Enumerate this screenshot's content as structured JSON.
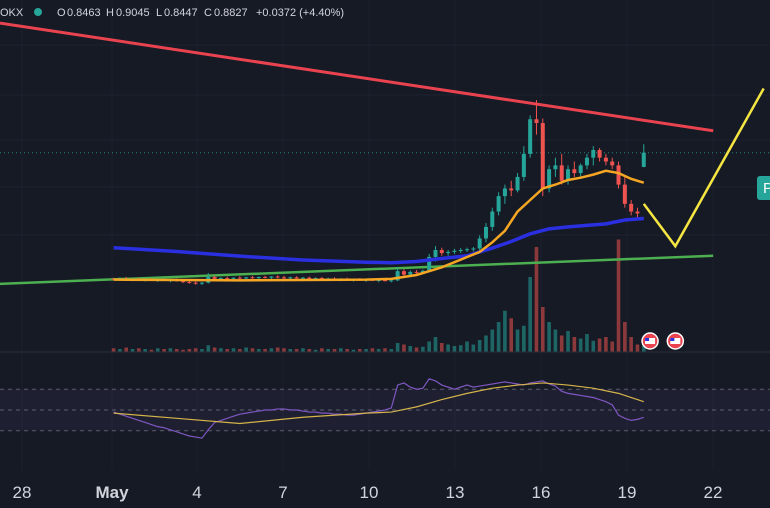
{
  "header": {
    "exchange": "OKX",
    "o_label": "O",
    "o_val": "0.8463",
    "h_label": "H",
    "h_val": "0.9045",
    "l_label": "L",
    "l_val": "0.8447",
    "c_label": "C",
    "c_val": "0.8827",
    "change": "+0.0372 (+4.40%)"
  },
  "price_badge": "P",
  "colors": {
    "background": "#161a25",
    "up": "#26a69a",
    "down": "#ef5350",
    "resistance": "#e8434f",
    "support": "#4caf50",
    "ma_fast": "#f5a623",
    "ma_slow": "#2a2fe0",
    "projection": "#f5e642",
    "rsi": "#7e57c2",
    "rsi_ma": "#d4b44a"
  },
  "chart_data": {
    "type": "candlestick",
    "x_ticks": [
      "28",
      "May",
      "4",
      "7",
      "10",
      "13",
      "16",
      "19",
      "22"
    ],
    "candles": [
      [
        0.555,
        0.558,
        0.551,
        0.554
      ],
      [
        0.554,
        0.559,
        0.55,
        0.556
      ],
      [
        0.556,
        0.56,
        0.552,
        0.553
      ],
      [
        0.553,
        0.557,
        0.549,
        0.555
      ],
      [
        0.555,
        0.558,
        0.55,
        0.552
      ],
      [
        0.552,
        0.556,
        0.548,
        0.554
      ],
      [
        0.554,
        0.557,
        0.55,
        0.551
      ],
      [
        0.551,
        0.555,
        0.547,
        0.553
      ],
      [
        0.553,
        0.556,
        0.549,
        0.55
      ],
      [
        0.55,
        0.554,
        0.546,
        0.552
      ],
      [
        0.552,
        0.556,
        0.548,
        0.549
      ],
      [
        0.549,
        0.553,
        0.544,
        0.547
      ],
      [
        0.547,
        0.551,
        0.542,
        0.545
      ],
      [
        0.545,
        0.549,
        0.54,
        0.543
      ],
      [
        0.543,
        0.547,
        0.539,
        0.545
      ],
      [
        0.545,
        0.57,
        0.543,
        0.56
      ],
      [
        0.56,
        0.563,
        0.552,
        0.555
      ],
      [
        0.555,
        0.559,
        0.551,
        0.557
      ],
      [
        0.557,
        0.561,
        0.553,
        0.555
      ],
      [
        0.555,
        0.559,
        0.551,
        0.558
      ],
      [
        0.558,
        0.562,
        0.554,
        0.556
      ],
      [
        0.556,
        0.56,
        0.552,
        0.559
      ],
      [
        0.559,
        0.563,
        0.555,
        0.557
      ],
      [
        0.557,
        0.561,
        0.553,
        0.56
      ],
      [
        0.56,
        0.563,
        0.556,
        0.558
      ],
      [
        0.558,
        0.562,
        0.554,
        0.561
      ],
      [
        0.561,
        0.564,
        0.556,
        0.559
      ],
      [
        0.559,
        0.563,
        0.555,
        0.557
      ],
      [
        0.557,
        0.561,
        0.553,
        0.559
      ],
      [
        0.559,
        0.562,
        0.555,
        0.556
      ],
      [
        0.556,
        0.56,
        0.552,
        0.558
      ],
      [
        0.558,
        0.561,
        0.554,
        0.555
      ],
      [
        0.555,
        0.559,
        0.551,
        0.557
      ],
      [
        0.557,
        0.56,
        0.553,
        0.554
      ],
      [
        0.554,
        0.558,
        0.55,
        0.556
      ],
      [
        0.556,
        0.559,
        0.552,
        0.553
      ],
      [
        0.553,
        0.557,
        0.549,
        0.555
      ],
      [
        0.555,
        0.558,
        0.551,
        0.552
      ],
      [
        0.552,
        0.556,
        0.548,
        0.554
      ],
      [
        0.554,
        0.557,
        0.55,
        0.551
      ],
      [
        0.551,
        0.555,
        0.547,
        0.553
      ],
      [
        0.553,
        0.556,
        0.549,
        0.55
      ],
      [
        0.55,
        0.554,
        0.546,
        0.552
      ],
      [
        0.552,
        0.555,
        0.548,
        0.549
      ],
      [
        0.549,
        0.553,
        0.546,
        0.551
      ],
      [
        0.551,
        0.585,
        0.549,
        0.575
      ],
      [
        0.575,
        0.58,
        0.562,
        0.566
      ],
      [
        0.566,
        0.577,
        0.563,
        0.573
      ],
      [
        0.573,
        0.578,
        0.568,
        0.571
      ],
      [
        0.571,
        0.579,
        0.569,
        0.576
      ],
      [
        0.576,
        0.62,
        0.574,
        0.612
      ],
      [
        0.612,
        0.64,
        0.6,
        0.63
      ],
      [
        0.63,
        0.636,
        0.615,
        0.622
      ],
      [
        0.622,
        0.63,
        0.615,
        0.625
      ],
      [
        0.625,
        0.633,
        0.62,
        0.628
      ],
      [
        0.628,
        0.635,
        0.622,
        0.63
      ],
      [
        0.63,
        0.636,
        0.625,
        0.632
      ],
      [
        0.632,
        0.638,
        0.626,
        0.634
      ],
      [
        0.634,
        0.668,
        0.63,
        0.66
      ],
      [
        0.66,
        0.7,
        0.65,
        0.69
      ],
      [
        0.69,
        0.74,
        0.68,
        0.73
      ],
      [
        0.73,
        0.78,
        0.72,
        0.77
      ],
      [
        0.77,
        0.8,
        0.75,
        0.79
      ],
      [
        0.79,
        0.81,
        0.77,
        0.785
      ],
      [
        0.785,
        0.83,
        0.78,
        0.82
      ],
      [
        0.82,
        0.9,
        0.81,
        0.88
      ],
      [
        0.88,
        0.98,
        0.87,
        0.97
      ],
      [
        0.97,
        1.02,
        0.93,
        0.96
      ],
      [
        0.96,
        0.972,
        0.77,
        0.79
      ],
      [
        0.79,
        0.85,
        0.78,
        0.84
      ],
      [
        0.84,
        0.87,
        0.82,
        0.85
      ],
      [
        0.85,
        0.88,
        0.8,
        0.81
      ],
      [
        0.81,
        0.85,
        0.8,
        0.84
      ],
      [
        0.84,
        0.86,
        0.82,
        0.83
      ],
      [
        0.83,
        0.855,
        0.815,
        0.85
      ],
      [
        0.85,
        0.88,
        0.84,
        0.87
      ],
      [
        0.87,
        0.9,
        0.85,
        0.89
      ],
      [
        0.89,
        0.895,
        0.86,
        0.87
      ],
      [
        0.87,
        0.88,
        0.85,
        0.86
      ],
      [
        0.86,
        0.87,
        0.84,
        0.85
      ],
      [
        0.85,
        0.86,
        0.79,
        0.8
      ],
      [
        0.8,
        0.82,
        0.74,
        0.75
      ],
      [
        0.75,
        0.76,
        0.72,
        0.73
      ],
      [
        0.73,
        0.74,
        0.715,
        0.725
      ],
      [
        0.846,
        0.905,
        0.845,
        0.883
      ]
    ],
    "ma_fast": [
      [
        0,
        0.553
      ],
      [
        10,
        0.552
      ],
      [
        20,
        0.551
      ],
      [
        30,
        0.552
      ],
      [
        40,
        0.553
      ],
      [
        44,
        0.555
      ],
      [
        48,
        0.565
      ],
      [
        52,
        0.585
      ],
      [
        55,
        0.605
      ],
      [
        58,
        0.625
      ],
      [
        60,
        0.65
      ],
      [
        62,
        0.68
      ],
      [
        64,
        0.73
      ],
      [
        66,
        0.76
      ],
      [
        68,
        0.79
      ],
      [
        70,
        0.8
      ],
      [
        72,
        0.812
      ],
      [
        74,
        0.818
      ],
      [
        76,
        0.826
      ],
      [
        78,
        0.836
      ],
      [
        80,
        0.83
      ],
      [
        82,
        0.815
      ],
      [
        84,
        0.805
      ]
    ],
    "ma_slow": [
      [
        0,
        0.636
      ],
      [
        10,
        0.626
      ],
      [
        20,
        0.614
      ],
      [
        30,
        0.604
      ],
      [
        40,
        0.598
      ],
      [
        44,
        0.597
      ],
      [
        48,
        0.6
      ],
      [
        52,
        0.608
      ],
      [
        56,
        0.615
      ],
      [
        60,
        0.635
      ],
      [
        63,
        0.652
      ],
      [
        66,
        0.672
      ],
      [
        69,
        0.685
      ],
      [
        72,
        0.69
      ],
      [
        75,
        0.694
      ],
      [
        78,
        0.698
      ],
      [
        81,
        0.708
      ],
      [
        84,
        0.712
      ]
    ],
    "resistance_line": [
      [
        -18,
        1.22
      ],
      [
        95,
        0.94
      ]
    ],
    "support_line": [
      [
        -18,
        0.542
      ],
      [
        95,
        0.615
      ]
    ],
    "projection": [
      [
        84,
        0.75
      ],
      [
        89,
        0.64
      ],
      [
        103,
        1.05
      ]
    ],
    "volume": [
      5,
      4,
      6,
      4,
      5,
      4,
      3,
      5,
      4,
      5,
      4,
      3,
      4,
      5,
      4,
      9,
      6,
      5,
      4,
      5,
      4,
      6,
      5,
      4,
      4,
      5,
      6,
      5,
      4,
      4,
      5,
      4,
      3,
      5,
      4,
      4,
      5,
      4,
      3,
      4,
      4,
      5,
      4,
      5,
      4,
      12,
      10,
      8,
      6,
      7,
      14,
      20,
      12,
      10,
      8,
      9,
      14,
      10,
      16,
      22,
      30,
      40,
      55,
      45,
      30,
      35,
      100,
      140,
      60,
      40,
      30,
      22,
      28,
      20,
      18,
      24,
      15,
      18,
      20,
      14,
      150,
      40,
      20,
      10,
      8
    ],
    "rsi": [
      48,
      46,
      44,
      42,
      40,
      38,
      36,
      34,
      33,
      31,
      29,
      27,
      25,
      24,
      23,
      31,
      38,
      40,
      42,
      44,
      46,
      47,
      48,
      49,
      50,
      50,
      51,
      51,
      50,
      50,
      49,
      48,
      48,
      47,
      47,
      46,
      46,
      45,
      45,
      46,
      47,
      48,
      49,
      50,
      52,
      74,
      76,
      72,
      70,
      71,
      80,
      78,
      74,
      72,
      70,
      72,
      74,
      72,
      73,
      74,
      75,
      76,
      77,
      76,
      75,
      74,
      76,
      77,
      78,
      75,
      73,
      68,
      66,
      65,
      64,
      63,
      62,
      60,
      58,
      55,
      45,
      42,
      40,
      41,
      43
    ],
    "rsi_ma": [
      [
        0,
        47
      ],
      [
        10,
        42
      ],
      [
        20,
        37
      ],
      [
        30,
        43
      ],
      [
        40,
        47
      ],
      [
        44,
        48
      ],
      [
        48,
        53
      ],
      [
        52,
        60
      ],
      [
        56,
        66
      ],
      [
        60,
        71
      ],
      [
        64,
        74
      ],
      [
        68,
        76
      ],
      [
        72,
        74
      ],
      [
        76,
        71
      ],
      [
        80,
        66
      ],
      [
        84,
        58
      ]
    ],
    "rsi_levels": [
      70,
      50,
      30
    ],
    "x_range": [
      -18,
      104
    ],
    "price_range": [
      0.5,
      1.28
    ]
  }
}
